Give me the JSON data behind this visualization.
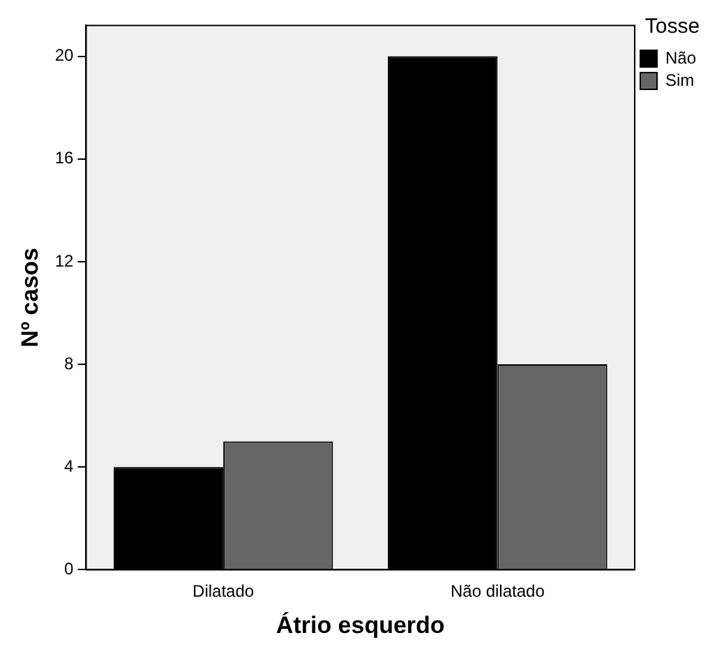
{
  "chart_data": {
    "type": "bar",
    "xlabel": "Átrio esquerdo",
    "ylabel": "Nº casos",
    "legend_title": "Tosse",
    "categories": [
      "Dilatado",
      "Não dilatado"
    ],
    "series": [
      {
        "name": "Não",
        "color": "#000000",
        "values": [
          4,
          20
        ]
      },
      {
        "name": "Sim",
        "color": "#666666",
        "values": [
          5,
          8
        ]
      }
    ],
    "ylim": [
      0,
      21.2
    ],
    "yticks": [
      0,
      4,
      8,
      12,
      16,
      20
    ],
    "grid": false,
    "legend": "top right"
  }
}
